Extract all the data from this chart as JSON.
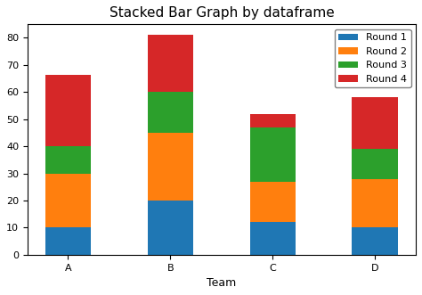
{
  "teams": [
    "A",
    "B",
    "C",
    "D"
  ],
  "round1": [
    10,
    20,
    12,
    10
  ],
  "round2": [
    20,
    25,
    15,
    18
  ],
  "round3": [
    10,
    15,
    20,
    11
  ],
  "round4": [
    26.5,
    21,
    5,
    19
  ],
  "colors": {
    "Round 1": "#1f77b4",
    "Round 2": "#ff7f0e",
    "Round 3": "#2ca02c",
    "Round 4": "#d62728"
  },
  "title": "Stacked Bar Graph by dataframe",
  "xlabel": "Team",
  "ylabel": "",
  "ylim": [
    0,
    85
  ],
  "yticks": [
    0,
    10,
    20,
    30,
    40,
    50,
    60,
    70,
    80
  ],
  "legend_labels": [
    "Round 1",
    "Round 2",
    "Round 3",
    "Round 4"
  ],
  "title_fontsize": 11,
  "xlabel_fontsize": 9,
  "tick_fontsize": 8,
  "legend_fontsize": 8,
  "bar_width": 0.45
}
